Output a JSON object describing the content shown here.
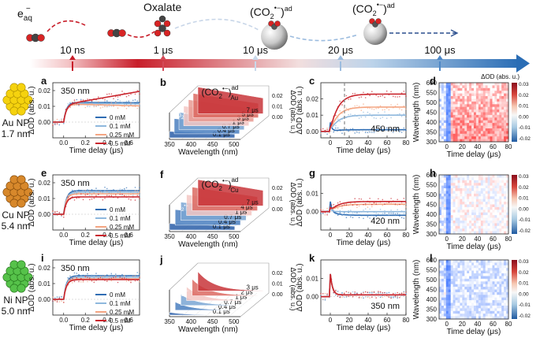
{
  "timeline": {
    "species": [
      "e",
      "aq",
      "−",
      "Oxalate",
      "(CO",
      "2",
      "•−",
      ")",
      "ad",
      "(CO",
      "2",
      "•−",
      ")",
      "ad"
    ],
    "ticks": [
      "10 ns",
      "1 μs",
      "10 μs",
      "20 μs",
      "100 μs"
    ],
    "colors": {
      "start": "#c81e2a",
      "end": "#2a6db5"
    }
  },
  "rows": [
    {
      "np_label": "Au NP",
      "np_size": "1.7 nm",
      "np_color": "#f5d20e",
      "np_edge": "#a88a00",
      "panels": [
        "a",
        "b",
        "c",
        "d"
      ],
      "wl_a": "350 nm",
      "wl_c": "450 nm",
      "surface_label": {
        "base": "(CO",
        "sub": "2",
        "sup": "•−",
        "close": ")",
        "supad": "ad",
        "subel": "Au"
      },
      "times": [
        "7 μs",
        "5 μs",
        "3 μs",
        "1 μs",
        "0.7 μs",
        "0.4 μs",
        "0.1 μs"
      ]
    },
    {
      "np_label": "Cu NP",
      "np_size": "5.4 nm",
      "np_color": "#d7882b",
      "np_edge": "#7a4408",
      "panels": [
        "e",
        "f",
        "g",
        "h"
      ],
      "wl_a": "350 nm",
      "wl_c": "420 nm",
      "surface_label": {
        "base": "(CO",
        "sub": "2",
        "sup": "•−",
        "close": ")",
        "supad": "ad",
        "subel": "Cu"
      },
      "times": [
        "7 μs",
        "4 μs",
        "1 μs",
        "0.7 μs",
        "0.4 μs",
        "0.1 μs"
      ]
    },
    {
      "np_label": "Ni NP",
      "np_size": "5.0 nm",
      "np_color": "#56c24a",
      "np_edge": "#1f6e17",
      "panels": [
        "i",
        "j",
        "k",
        "l"
      ],
      "wl_a": "350 nm",
      "wl_c": "350 nm",
      "surface_label": null,
      "times": [
        "3 μs",
        "2 μs",
        "1 μs",
        "0.7 μs",
        "0.4 μs",
        "0.1 μs"
      ]
    }
  ],
  "co2_label": {
    "base": "CO",
    "sub": "2",
    "sup": "•−"
  },
  "legend": {
    "entries": [
      "0 mM",
      "0.1 mM",
      "0.25 mM",
      "0.5 mM"
    ],
    "colors": [
      "#2f6db3",
      "#8fb8dd",
      "#f4a582",
      "#c9252d"
    ]
  },
  "colorbar": {
    "title": "ΔOD (abs. u.)",
    "ticks": [
      "0.03",
      "0.02",
      "0.01",
      "0.00",
      "-0.01",
      "-0.02"
    ],
    "min": -0.02,
    "max": 0.03
  },
  "chart_data": [
    {
      "panel": "a",
      "type": "line",
      "title": "350 nm",
      "xlabel": "Time delay (μs)",
      "ylabel": "ΔOD (abs. u.)",
      "xlim": [
        -0.1,
        0.7
      ],
      "ylim": [
        -0.01,
        0.025
      ],
      "xticks": [
        "0.0",
        "0.2",
        "0.4",
        "0.6"
      ],
      "yticks": [
        "0.00",
        "0.01",
        "0.02"
      ],
      "series": [
        {
          "name": "0 mM",
          "plateau": 0.0125,
          "decay": 0.0002
        },
        {
          "name": "0.1 mM",
          "plateau": 0.012,
          "decay": 0.0004
        },
        {
          "name": "0.25 mM",
          "plateau": 0.0115,
          "decay": 0.0012
        },
        {
          "name": "0.5 mM",
          "plateau": 0.011,
          "decay": -0.0085
        }
      ]
    },
    {
      "panel": "b",
      "type": "area",
      "xlabel": "Wavelength (nm)",
      "ylabel": "ΔOD (abs. u.)",
      "xticks": [
        "350",
        "400",
        "450",
        "500"
      ],
      "zticks": [
        "0.00",
        "0.01",
        "0.02"
      ],
      "series": [
        {
          "name": "0.1 μs",
          "values": [
            0.012,
            0.006,
            0.003,
            0.002
          ]
        },
        {
          "name": "7 μs",
          "values": [
            0.012,
            0.011,
            0.01,
            0.009
          ]
        }
      ]
    },
    {
      "panel": "c",
      "type": "line",
      "xlabel": "Time delay (μs)",
      "ylabel": "ΔOD (abs. u.)",
      "xlim": [
        -10,
        80
      ],
      "ylim": [
        -0.004,
        0.03
      ],
      "xticks": [
        "0",
        "20",
        "40",
        "60",
        "80"
      ],
      "yticks": [
        "0.00",
        "0.01",
        "0.02"
      ],
      "series": [
        {
          "name": "0 mM",
          "plateau": 0.001
        },
        {
          "name": "0.1 mM",
          "plateau": 0.01
        },
        {
          "name": "0.25 mM",
          "plateau": 0.015
        },
        {
          "name": "0.5 mM",
          "plateau": 0.023
        }
      ]
    },
    {
      "panel": "d",
      "type": "heatmap",
      "xlabel": "Time delay (μs)",
      "ylabel": "Wavelength (nm)",
      "xlim": [
        -10,
        80
      ],
      "ylim": [
        300,
        600
      ],
      "xticks": [
        "0",
        "20",
        "40",
        "60",
        "80"
      ],
      "yticks": [
        "300",
        "350",
        "400",
        "450",
        "500",
        "550",
        "600"
      ]
    },
    {
      "panel": "e",
      "type": "line",
      "title": "350 nm",
      "xlabel": "Time delay (μs)",
      "ylabel": "ΔOD (abs. u.)",
      "xlim": [
        -0.1,
        0.7
      ],
      "ylim": [
        -0.01,
        0.025
      ],
      "xticks": [
        "0.0",
        "0.2",
        "0.4",
        "0.6"
      ],
      "yticks": [
        "0.00",
        "0.01",
        "0.02"
      ],
      "series": [
        {
          "name": "0 mM",
          "plateau": 0.015,
          "decay": 0
        },
        {
          "name": "0.1 mM",
          "plateau": 0.014,
          "decay": 0
        },
        {
          "name": "0.25 mM",
          "plateau": 0.013,
          "decay": 0
        },
        {
          "name": "0.5 mM",
          "plateau": 0.011,
          "decay": 0
        }
      ]
    },
    {
      "panel": "f",
      "type": "area",
      "xlabel": "Wavelength (nm)",
      "ylabel": "ΔOD (abs. u.)",
      "xticks": [
        "350",
        "400",
        "450",
        "500"
      ],
      "zticks": [
        "0.00",
        "0.01",
        "0.02"
      ]
    },
    {
      "panel": "g",
      "type": "line",
      "xlabel": "Time delay (μs)",
      "ylabel": "ΔOD (abs. u.)",
      "xlim": [
        -10,
        80
      ],
      "ylim": [
        -0.01,
        0.02
      ],
      "xticks": [
        "0",
        "20",
        "40",
        "60",
        "80"
      ],
      "yticks": [
        "0.00",
        "0.01"
      ],
      "series": [
        {
          "name": "0 mM",
          "plateau": -0.002
        },
        {
          "name": "0.1 mM",
          "plateau": 0.0
        },
        {
          "name": "0.25 mM",
          "plateau": 0.004
        },
        {
          "name": "0.5 mM",
          "plateau": 0.0055
        }
      ]
    },
    {
      "panel": "h",
      "type": "heatmap",
      "xlabel": "Time delay (μs)",
      "ylabel": "Wavelength (nm)",
      "xlim": [
        -10,
        80
      ],
      "ylim": [
        300,
        600
      ],
      "xticks": [
        "0",
        "20",
        "40",
        "60",
        "80"
      ],
      "yticks": [
        "300",
        "350",
        "400",
        "450",
        "500",
        "550",
        "600"
      ]
    },
    {
      "panel": "i",
      "type": "line",
      "title": "350 nm",
      "xlabel": "Time delay (μs)",
      "ylabel": "ΔOD (abs. u.)",
      "xlim": [
        -0.1,
        0.7
      ],
      "ylim": [
        -0.01,
        0.025
      ],
      "xticks": [
        "0.0",
        "0.2",
        "0.4",
        "0.6"
      ],
      "yticks": [
        "0.00",
        "0.01",
        "0.02"
      ],
      "series": [
        {
          "name": "0 mM",
          "plateau": 0.015,
          "decay": 0
        },
        {
          "name": "0.1 mM",
          "plateau": 0.014,
          "decay": 0
        },
        {
          "name": "0.25 mM",
          "plateau": 0.013,
          "decay": 0
        },
        {
          "name": "0.5 mM",
          "plateau": 0.0125,
          "decay": 0
        }
      ]
    },
    {
      "panel": "j",
      "type": "area",
      "xlabel": "Wavelength (nm)",
      "ylabel": "ΔOD (abs. u.)",
      "xticks": [
        "350",
        "400",
        "450",
        "500"
      ],
      "zticks": [
        "0.00",
        "0.01",
        "0.02"
      ]
    },
    {
      "panel": "k",
      "type": "line",
      "xlabel": "Time delay (μs)",
      "ylabel": "ΔOD (abs. u.)",
      "xlim": [
        -10,
        80
      ],
      "ylim": [
        -0.01,
        0.02
      ],
      "xticks": [
        "0",
        "20",
        "40",
        "60",
        "80"
      ],
      "yticks": [
        "0.00",
        "0.01"
      ],
      "series": [
        {
          "name": "0 mM",
          "plateau": 0.0
        },
        {
          "name": "0.1 mM",
          "plateau": 0.0
        },
        {
          "name": "0.25 mM",
          "plateau": 0.0
        },
        {
          "name": "0.5 mM",
          "plateau": 0.0
        }
      ]
    },
    {
      "panel": "l",
      "type": "heatmap",
      "xlabel": "Time delay (μs)",
      "ylabel": "Wavelength (nm)",
      "xlim": [
        -10,
        80
      ],
      "ylim": [
        300,
        600
      ],
      "xticks": [
        "0",
        "20",
        "40",
        "60",
        "80"
      ],
      "yticks": [
        "300",
        "350",
        "400",
        "450",
        "500",
        "550",
        "600"
      ]
    }
  ]
}
